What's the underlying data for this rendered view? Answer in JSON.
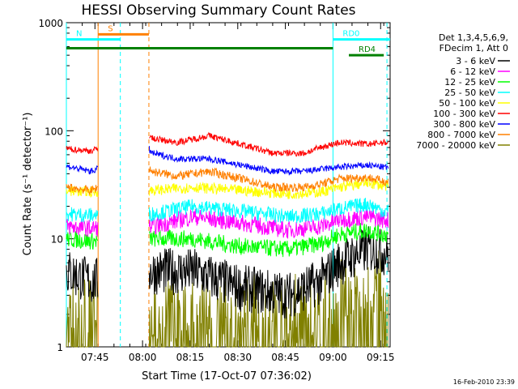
{
  "chart_data": {
    "type": "line",
    "title": "HESSI Observing Summary Count Rates",
    "xlabel": "Start Time (17-Oct-07 07:36:02)",
    "ylabel": "Count Rate (s⁻¹ detector⁻¹)",
    "y_scale": "log",
    "ylim": [
      1,
      1000
    ],
    "xlim_minutes_from_0736": [
      0,
      102
    ],
    "x_tick_labels": [
      "07:45",
      "08:00",
      "08:15",
      "08:30",
      "08:45",
      "09:00",
      "09:15"
    ],
    "x_tick_minutes": [
      9,
      24,
      39,
      54,
      69,
      84,
      99
    ],
    "y_tick_labels": [
      "1",
      "10",
      "100",
      "1000"
    ],
    "y_tick_values": [
      1,
      10,
      100,
      1000
    ],
    "footer_date": "16-Feb-2010 23:39",
    "legend_header": [
      "Det 1,3,4,5,6,9,",
      "FDecim 1, Att 0"
    ],
    "series": [
      {
        "name": "3 - 6 keV",
        "color": "#000000",
        "trend": [
          [
            0,
            5
          ],
          [
            8,
            4
          ],
          [
            27,
            5
          ],
          [
            40,
            5
          ],
          [
            55,
            3.5
          ],
          [
            70,
            3
          ],
          [
            80,
            4
          ],
          [
            86,
            6
          ],
          [
            95,
            8
          ],
          [
            100,
            7.5
          ]
        ]
      },
      {
        "name": "6 - 12 keV",
        "color": "#ff00ff",
        "trend": [
          [
            0,
            13
          ],
          [
            8,
            12.5
          ],
          [
            27,
            13
          ],
          [
            40,
            16
          ],
          [
            55,
            14
          ],
          [
            70,
            12
          ],
          [
            80,
            13
          ],
          [
            86,
            15
          ],
          [
            95,
            16
          ],
          [
            100,
            15
          ]
        ]
      },
      {
        "name": "12 - 25 keV",
        "color": "#00ff00",
        "trend": [
          [
            0,
            10
          ],
          [
            8,
            9.5
          ],
          [
            27,
            10
          ],
          [
            40,
            10
          ],
          [
            55,
            8.5
          ],
          [
            70,
            8
          ],
          [
            80,
            9
          ],
          [
            86,
            11
          ],
          [
            95,
            12
          ],
          [
            100,
            11
          ]
        ]
      },
      {
        "name": "25 - 50 keV",
        "color": "#00ffff",
        "trend": [
          [
            0,
            17
          ],
          [
            8,
            16.5
          ],
          [
            27,
            17
          ],
          [
            40,
            20
          ],
          [
            55,
            18
          ],
          [
            70,
            16
          ],
          [
            80,
            17
          ],
          [
            86,
            19
          ],
          [
            95,
            21
          ],
          [
            100,
            18
          ]
        ]
      },
      {
        "name": "50 - 100 keV",
        "color": "#ffff00",
        "trend": [
          [
            0,
            28
          ],
          [
            8,
            27
          ],
          [
            27,
            28
          ],
          [
            40,
            30
          ],
          [
            55,
            28
          ],
          [
            70,
            26
          ],
          [
            80,
            27
          ],
          [
            86,
            30
          ],
          [
            95,
            33
          ],
          [
            100,
            31
          ]
        ]
      },
      {
        "name": "100 - 300 keV",
        "color": "#ff0000",
        "trend": [
          [
            0,
            68
          ],
          [
            8,
            65
          ],
          [
            25,
            100
          ],
          [
            27,
            85
          ],
          [
            35,
            78
          ],
          [
            45,
            90
          ],
          [
            55,
            75
          ],
          [
            65,
            62
          ],
          [
            75,
            62
          ],
          [
            80,
            70
          ],
          [
            86,
            78
          ],
          [
            95,
            75
          ],
          [
            100,
            78
          ]
        ]
      },
      {
        "name": "300 - 800 keV",
        "color": "#0000ff",
        "trend": [
          [
            0,
            47
          ],
          [
            8,
            42
          ],
          [
            25,
            75
          ],
          [
            27,
            62
          ],
          [
            35,
            55
          ],
          [
            45,
            55
          ],
          [
            55,
            48
          ],
          [
            65,
            42
          ],
          [
            75,
            42
          ],
          [
            80,
            44
          ],
          [
            86,
            46
          ],
          [
            95,
            48
          ],
          [
            100,
            46
          ]
        ]
      },
      {
        "name": "800 - 7000 keV",
        "color": "#ff8000",
        "trend": [
          [
            0,
            30
          ],
          [
            8,
            28
          ],
          [
            25,
            50
          ],
          [
            27,
            42
          ],
          [
            35,
            38
          ],
          [
            45,
            42
          ],
          [
            55,
            36
          ],
          [
            65,
            30
          ],
          [
            75,
            30
          ],
          [
            80,
            32
          ],
          [
            86,
            36
          ],
          [
            95,
            37
          ],
          [
            100,
            34
          ]
        ]
      },
      {
        "name": "7000 - 20000 keV",
        "color": "#808000",
        "trend": [
          [
            0,
            1.6
          ],
          [
            8,
            1.5
          ],
          [
            27,
            1.5
          ],
          [
            80,
            1.6
          ],
          [
            86,
            2.3
          ],
          [
            95,
            2.7
          ],
          [
            100,
            2.6
          ]
        ]
      }
    ],
    "annotations": [
      {
        "label": "S",
        "color": "#ff8000",
        "y": 780,
        "x_start": 10,
        "x_end": 26
      },
      {
        "label": "N",
        "color": "#00ffff",
        "y": 700,
        "x_start": 0,
        "x_end": 17
      },
      {
        "label": "RD0",
        "color": "#00ffff",
        "y": 700,
        "x_start": 84,
        "x_end": 102
      },
      {
        "label": "RD4",
        "color": "#008000",
        "y": 500,
        "x_start": 89,
        "x_end": 100
      },
      {
        "label": "",
        "color": "#008000",
        "y": 580,
        "x_start": 0,
        "x_end": 84
      }
    ],
    "vertical_markers": [
      {
        "x": 0,
        "color": "#00ffff",
        "style": "solid"
      },
      {
        "x": 10,
        "color": "#ff8000",
        "style": "solid"
      },
      {
        "x": 17,
        "color": "#00ffff",
        "style": "dashed"
      },
      {
        "x": 26,
        "color": "#ff8000",
        "style": "dashed"
      },
      {
        "x": 84,
        "color": "#00ffff",
        "style": "solid"
      },
      {
        "x": 101,
        "color": "#00ffff",
        "style": "dashed"
      }
    ],
    "data_gaps_minutes": [
      [
        10,
        26
      ]
    ]
  }
}
